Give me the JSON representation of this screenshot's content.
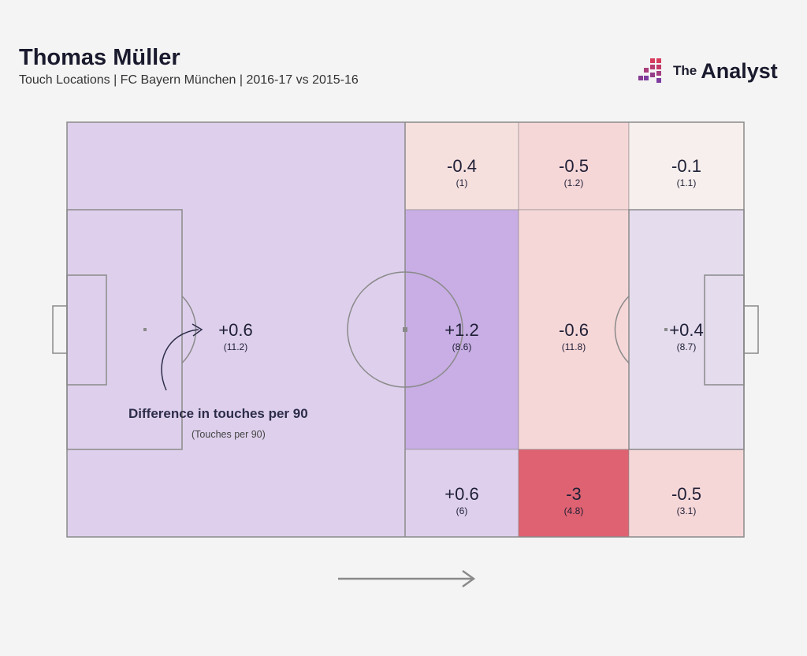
{
  "header": {
    "title": "Thomas Müller",
    "subtitle": "Touch Locations | FC Bayern München | 2016-17 vs 2015-16"
  },
  "brand": {
    "prefix": "The",
    "name": "Analyst"
  },
  "colors": {
    "pitch_lines": "#8a8a8a",
    "text": "#1f1f36",
    "positive_strong": "#c8aee4",
    "positive_light": "#ded0ec",
    "positive_faint": "#e5dcee",
    "negative_strong": "#de6271",
    "negative_medium": "#f6d7d8",
    "negative_light": "#f5e0de",
    "neutral": "#f6efed",
    "brand_gradient": [
      "#7d3c9e",
      "#d63c5c"
    ]
  },
  "chart_data": {
    "type": "heatmap",
    "title": "Thomas Müller",
    "subtitle": "Touch Locations | FC Bayern München | 2016-17 vs 2015-16",
    "legend": {
      "value_label": "Difference in touches per 90",
      "sub_label": "(Touches per 90)"
    },
    "attack_direction": "left-to-right",
    "zones": [
      {
        "zone": "own-half",
        "value": "+0.6",
        "sub": "(11.2)",
        "color": "#ded0ec"
      },
      {
        "zone": "middle-third-left-wing",
        "value": "-0.4",
        "sub": "(1)",
        "color": "#f5e0de"
      },
      {
        "zone": "final-third-inner-left",
        "value": "-0.5",
        "sub": "(1.2)",
        "color": "#f6d7d8"
      },
      {
        "zone": "final-third-outer-left",
        "value": "-0.1",
        "sub": "(1.1)",
        "color": "#f6efed"
      },
      {
        "zone": "middle-third-center",
        "value": "+1.2",
        "sub": "(8.6)",
        "color": "#c8aee4"
      },
      {
        "zone": "final-third-inner-center",
        "value": "-0.6",
        "sub": "(11.8)",
        "color": "#f6d7d8"
      },
      {
        "zone": "final-third-box",
        "value": "+0.4",
        "sub": "(8.7)",
        "color": "#e5dcee"
      },
      {
        "zone": "middle-third-right-wing",
        "value": "+0.6",
        "sub": "(6)",
        "color": "#ded0ec"
      },
      {
        "zone": "final-third-inner-right",
        "value": "-3",
        "sub": "(4.8)",
        "color": "#de6271"
      },
      {
        "zone": "final-third-outer-right",
        "value": "-0.5",
        "sub": "(3.1)",
        "color": "#f6d7d8"
      }
    ]
  }
}
